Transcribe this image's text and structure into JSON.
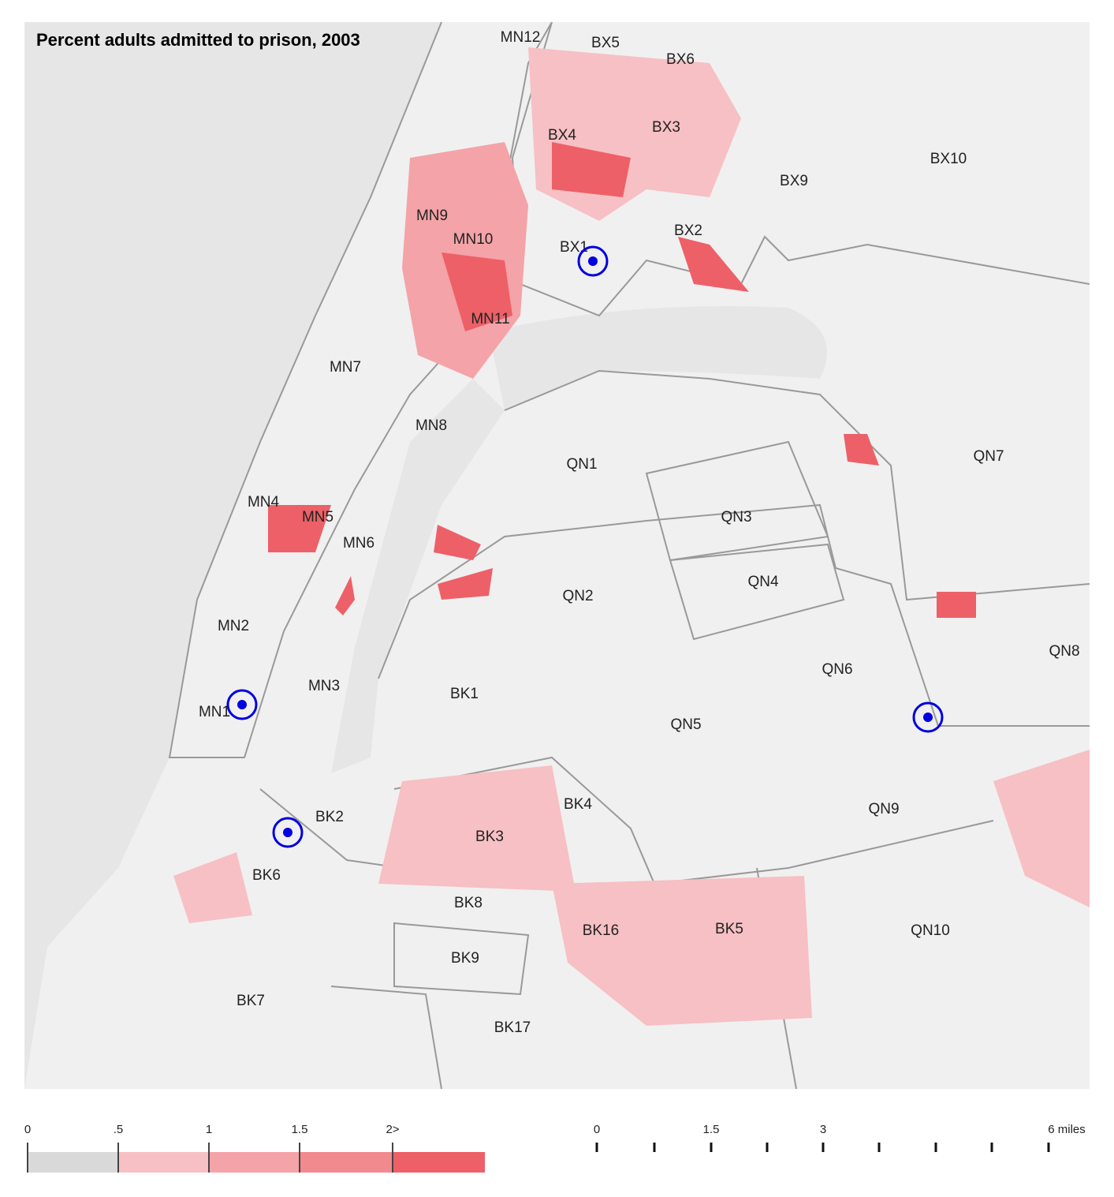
{
  "header": {
    "title": "Percent adults admitted to prison, 2003"
  },
  "districts": [
    "MN12",
    "BX5",
    "BX6",
    "BX4",
    "BX3",
    "BX10",
    "BX9",
    "MN9",
    "MN10",
    "BX2",
    "BX1",
    "MN11",
    "MN7",
    "MN8",
    "QN1",
    "QN7",
    "MN4",
    "MN5",
    "MN6",
    "QN3",
    "QN4",
    "QN2",
    "MN2",
    "QN8",
    "QN6",
    "MN3",
    "BK1",
    "MN1",
    "QN5",
    "BK4",
    "QN9",
    "BK2",
    "BK3",
    "BK6",
    "BK8",
    "BK16",
    "BK5",
    "QN10",
    "BK9",
    "BK7",
    "BK17"
  ],
  "legend": {
    "ticks": [
      "0",
      ".5",
      "1",
      "1.5",
      "2>"
    ]
  },
  "scale": {
    "ticks": [
      "0",
      "1.5",
      "3",
      "6 miles"
    ]
  }
}
